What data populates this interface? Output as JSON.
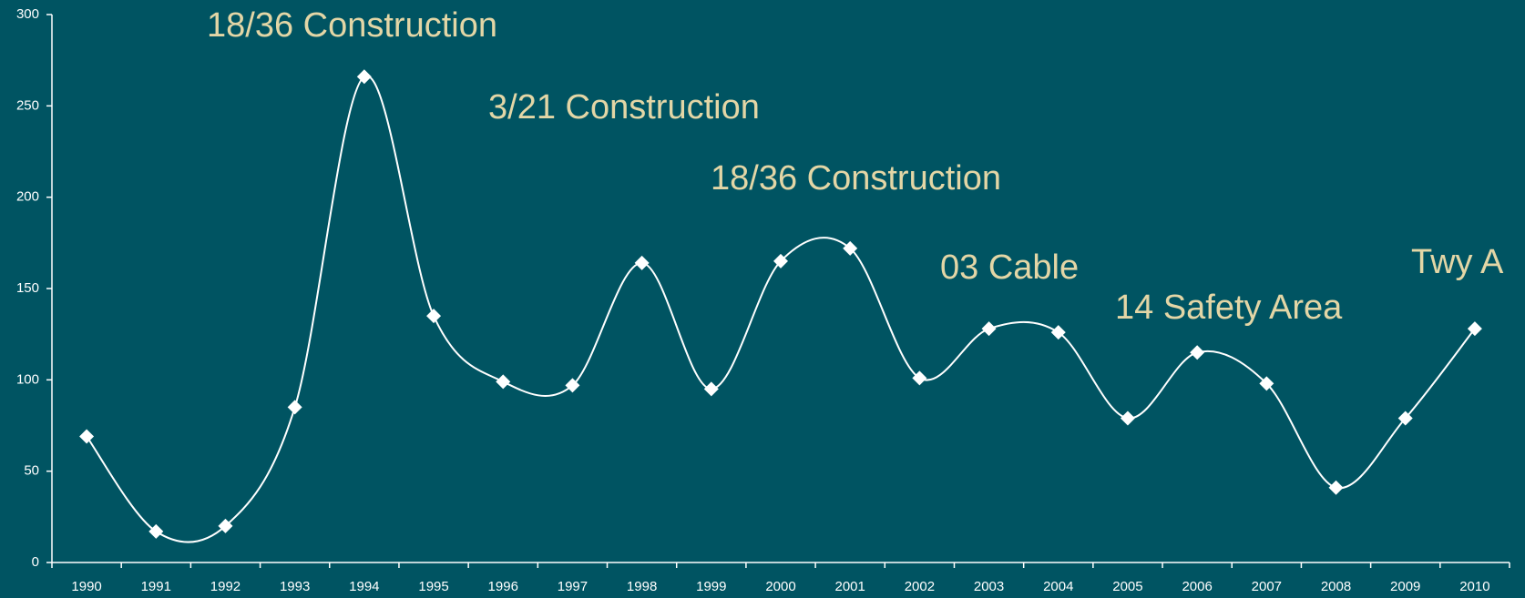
{
  "chart_data": {
    "type": "line",
    "categories": [
      "1990",
      "1991",
      "1992",
      "1993",
      "1994",
      "1995",
      "1996",
      "1997",
      "1998",
      "1999",
      "2000",
      "2001",
      "2002",
      "2003",
      "2004",
      "2005",
      "2006",
      "2007",
      "2008",
      "2009",
      "2010"
    ],
    "series": [
      {
        "color": "#ffffff",
        "values": [
          69,
          17,
          20,
          85,
          266,
          135,
          99,
          97,
          164,
          95,
          165,
          172,
          101,
          128,
          126,
          79,
          115,
          98,
          41,
          79,
          128
        ]
      }
    ],
    "ylim": [
      0,
      300
    ],
    "yticks": [
      0,
      50,
      100,
      150,
      200,
      250,
      300
    ],
    "grid": false,
    "smooth": true,
    "annotations": [
      "18/36 Construction",
      "3/21 Construction",
      "18/36 Construction",
      "03 Cable",
      "14 Safety Area",
      "Twy A"
    ]
  }
}
